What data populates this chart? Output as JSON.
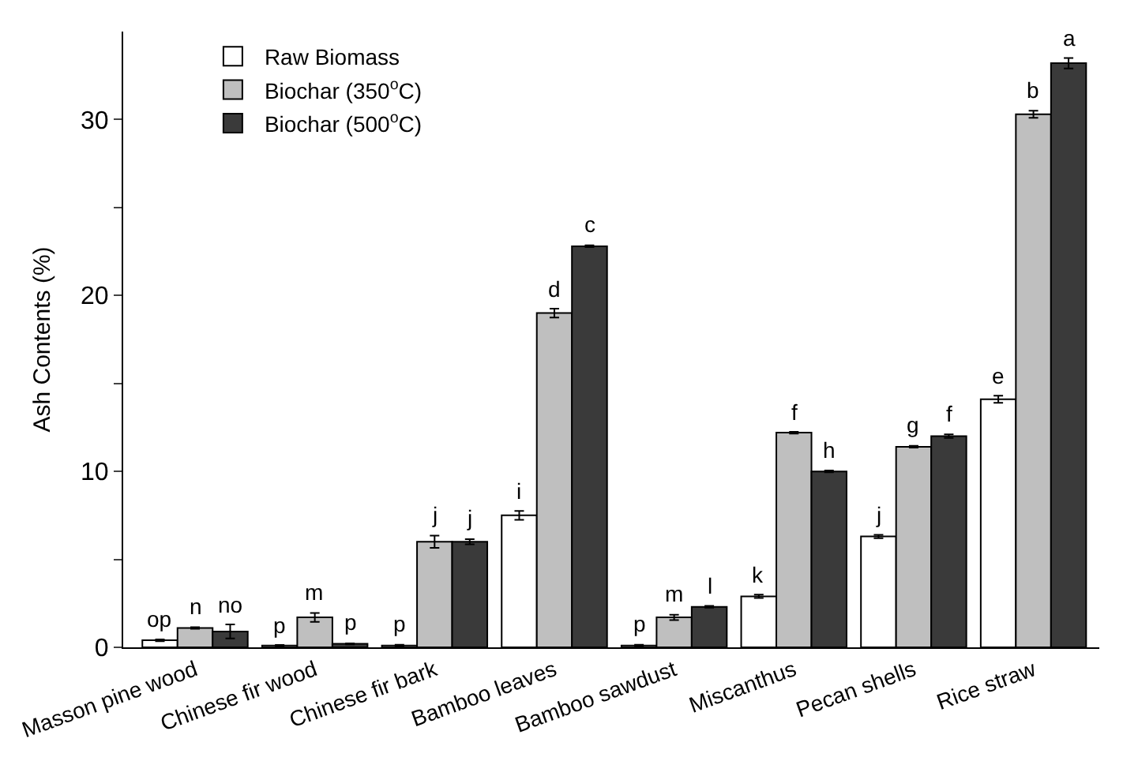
{
  "chart_data": {
    "type": "bar",
    "ylabel": "Ash Contents (%)",
    "categories": [
      "Masson pine wood",
      "Chinese fir wood",
      "Chinese fir bark",
      "Bamboo leaves",
      "Bamboo sawdust",
      "Miscanthus",
      "Pecan shells",
      "Rice straw"
    ],
    "series": [
      {
        "name": "Raw Biomass",
        "color": "#ffffff",
        "values": [
          0.4,
          0.1,
          0.1,
          7.5,
          0.1,
          2.9,
          6.3,
          14.1
        ],
        "errors": [
          0.05,
          0.03,
          0.05,
          0.25,
          0.05,
          0.1,
          0.1,
          0.2
        ],
        "value_labels": [
          "op",
          "p",
          "p",
          "i",
          "p",
          "k",
          "j",
          "e"
        ]
      },
      {
        "name": "Biochar (350$^{o}$C)",
        "color": "#bfbfbf",
        "values": [
          1.1,
          1.7,
          6.0,
          19.0,
          1.7,
          12.2,
          11.4,
          30.3
        ],
        "errors": [
          0.05,
          0.25,
          0.35,
          0.25,
          0.15,
          0.05,
          0.05,
          0.2
        ],
        "value_labels": [
          "n",
          "m",
          "j",
          "d",
          "m",
          "f",
          "g",
          "b"
        ]
      },
      {
        "name": "Biochar (500$^{o}$C)",
        "color": "#3a3a3a",
        "values": [
          0.9,
          0.2,
          6.0,
          22.8,
          2.3,
          10.0,
          12.0,
          33.2
        ],
        "errors": [
          0.4,
          0.03,
          0.15,
          0.05,
          0.05,
          0.05,
          0.1,
          0.3
        ],
        "value_labels": [
          "no",
          "p",
          "j",
          "c",
          "l",
          "h",
          "f",
          "a"
        ]
      }
    ],
    "ylim": [
      0,
      35
    ],
    "yticks": [
      0,
      {
        "value": 5,
        "label": null
      },
      10,
      {
        "value": 15,
        "label": null
      },
      20,
      {
        "value": 25,
        "label": null
      },
      30
    ],
    "legend": "top left"
  }
}
